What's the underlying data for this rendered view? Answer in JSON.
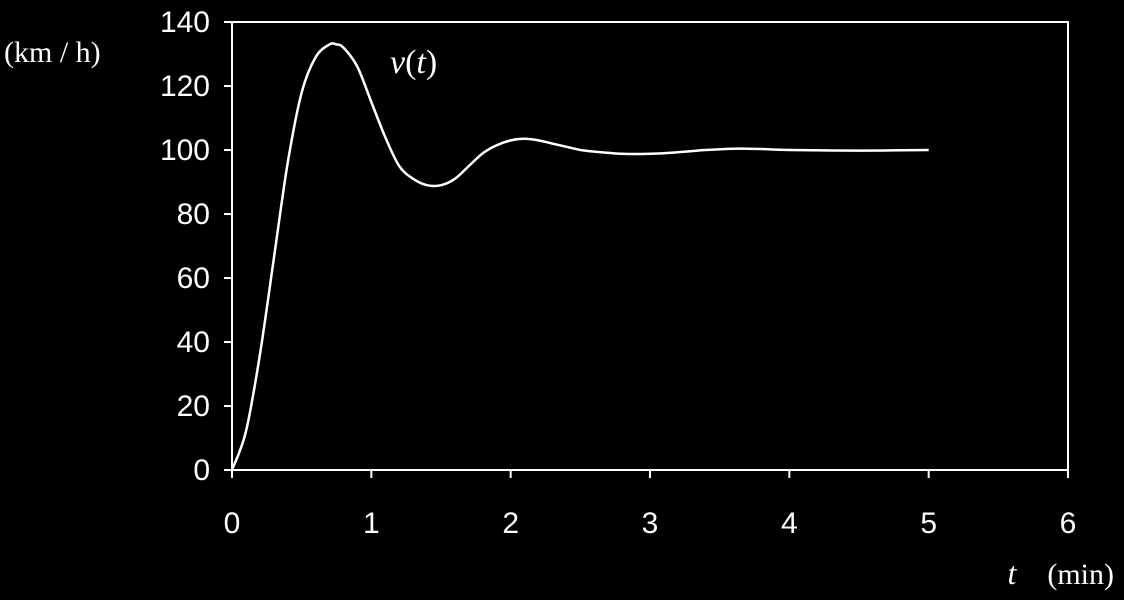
{
  "chart_data": {
    "type": "line",
    "title": "",
    "xlabel_var": "t",
    "xlabel_unit": "(min)",
    "ylabel": "(km / h)",
    "xlim": [
      0,
      6
    ],
    "ylim": [
      0,
      140
    ],
    "xticks": [
      "0",
      "1",
      "2",
      "3",
      "4",
      "5",
      "6"
    ],
    "yticks": [
      "0",
      "20",
      "40",
      "60",
      "80",
      "100",
      "120",
      "140"
    ],
    "grid": false,
    "colors": {
      "background": "#000000",
      "line": "#ffffff",
      "axis": "#ffffff"
    },
    "series": [
      {
        "label_var": "v",
        "label_arg": "t",
        "x": [
          0,
          0.1,
          0.2,
          0.3,
          0.4,
          0.5,
          0.6,
          0.7,
          0.75,
          0.8,
          0.9,
          1.0,
          1.1,
          1.2,
          1.3,
          1.4,
          1.5,
          1.6,
          1.7,
          1.8,
          1.9,
          2.0,
          2.1,
          2.2,
          2.3,
          2.4,
          2.5,
          2.6,
          2.8,
          3.0,
          3.2,
          3.4,
          3.6,
          3.8,
          4.0,
          4.5,
          5.0
        ],
        "y": [
          0,
          12,
          36,
          66,
          96,
          118,
          129,
          133,
          133,
          132,
          126,
          115,
          104,
          95,
          91,
          89,
          89,
          91,
          95,
          99,
          101.5,
          103,
          103.5,
          103,
          102,
          101,
          100,
          99.5,
          98.8,
          98.8,
          99.3,
          100,
          100.4,
          100.3,
          100,
          99.8,
          100
        ]
      }
    ]
  }
}
